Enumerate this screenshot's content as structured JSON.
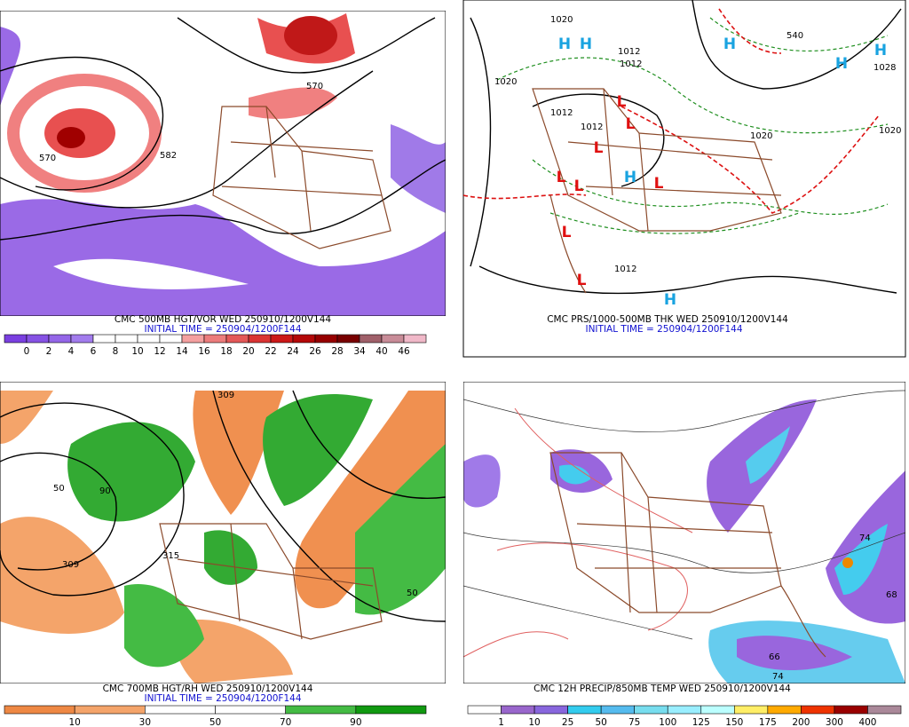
{
  "panels": [
    {
      "caption": "CMC 500MB HGT/VOR WED 250910/1200V144",
      "initial_time": "INITIAL TIME = 250904/1200F144",
      "colorbar": {
        "labels": [
          0,
          2,
          4,
          6,
          8,
          10,
          12,
          14,
          16,
          18,
          20,
          22,
          24,
          26,
          28,
          34,
          40,
          46
        ],
        "colors": [
          "#7a3fe0",
          "#8652e4",
          "#9466e8",
          "#a27ced",
          "#ffffff",
          "#ffffff",
          "#ffffff",
          "#ffffff",
          "#f4a0a0",
          "#ec7c7c",
          "#e45858",
          "#da3434",
          "#cc1818",
          "#b40808",
          "#960000",
          "#780000",
          "#a0606a",
          "#c88c98",
          "#f0b8c8"
        ]
      },
      "map_labels": [
        "570",
        "582",
        "570"
      ]
    },
    {
      "caption": "CMC PRS/1000-500MB THK WED 250910/1200V144",
      "initial_time": "INITIAL TIME = 250904/1200F144",
      "map_labels": [
        "1020",
        "H",
        "H",
        "1012",
        "1012",
        "H",
        "540",
        "H",
        "H",
        "1028",
        "1020",
        "L",
        "1012",
        "L",
        "1012",
        "1020",
        "1020",
        "L",
        "L",
        "L",
        "H",
        "L",
        "L",
        "1012",
        "L",
        "H"
      ]
    },
    {
      "caption": "CMC 700MB HGT/RH WED 250910/1200V144",
      "initial_time": "INITIAL TIME = 250904/1200F144",
      "colorbar": {
        "labels": [
          10,
          30,
          50,
          70,
          90
        ],
        "colors": [
          "#ee8844",
          "#f4a46a",
          "#ffffff",
          "#ffffff",
          "#44bb44",
          "#119911"
        ]
      },
      "map_labels": [
        "309",
        "50",
        "90",
        "309",
        "315",
        "50"
      ]
    },
    {
      "caption": "CMC 12H PRECIP/850MB TEMP WED 250910/1200V144",
      "colorbar": {
        "labels": [
          1,
          10,
          25,
          50,
          75,
          100,
          125,
          150,
          175,
          200,
          300,
          400
        ],
        "colors": [
          "#ffffff",
          "#9966cc",
          "#8866dd",
          "#33ccee",
          "#55bbee",
          "#77ddee",
          "#99eeff",
          "#bbffff",
          "#ffee66",
          "#ffaa00",
          "#ee3300",
          "#990000",
          "#aa8899"
        ]
      },
      "map_labels": [
        "74",
        "68",
        "66",
        "74"
      ]
    }
  ]
}
